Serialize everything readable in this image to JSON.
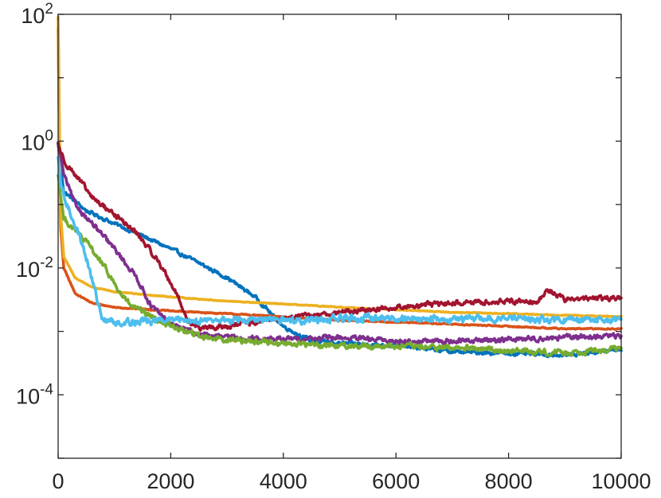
{
  "chart_data": {
    "type": "line",
    "title": "",
    "xlabel": "",
    "ylabel": "",
    "xlim": [
      0,
      10000
    ],
    "ylim": [
      1e-05,
      100
    ],
    "yscale": "log",
    "grid": false,
    "legend": "none",
    "x_ticks": [
      {
        "value": 0,
        "label": "0"
      },
      {
        "value": 2000,
        "label": "2000"
      },
      {
        "value": 4000,
        "label": "4000"
      },
      {
        "value": 6000,
        "label": "6000"
      },
      {
        "value": 8000,
        "label": "8000"
      },
      {
        "value": 10000,
        "label": "10000"
      }
    ],
    "y_ticks": [
      {
        "value": 0.0001,
        "base": "10",
        "exp": "-4"
      },
      {
        "value": 0.01,
        "base": "10",
        "exp": "-2"
      },
      {
        "value": 1,
        "base": "10",
        "exp": "0"
      },
      {
        "value": 100,
        "base": "10",
        "exp": "2"
      }
    ],
    "series": [
      {
        "color": "#0072BD",
        "noise": 0.05,
        "points": [
          [
            0,
            0.9
          ],
          [
            100,
            0.16
          ],
          [
            500,
            0.08
          ],
          [
            1000,
            0.05
          ],
          [
            1500,
            0.032
          ],
          [
            2000,
            0.02
          ],
          [
            2500,
            0.012
          ],
          [
            3000,
            0.007
          ],
          [
            3500,
            0.0035
          ],
          [
            4000,
            0.0012
          ],
          [
            4500,
            0.0007
          ],
          [
            5000,
            0.00065
          ],
          [
            6000,
            0.0006
          ],
          [
            7000,
            0.00048
          ],
          [
            8000,
            0.00045
          ],
          [
            9000,
            0.00042
          ],
          [
            10000,
            0.00052
          ]
        ]
      },
      {
        "color": "#D95319",
        "noise": 0.015,
        "points": [
          [
            0,
            60
          ],
          [
            40,
            0.05
          ],
          [
            100,
            0.01
          ],
          [
            300,
            0.004
          ],
          [
            600,
            0.0028
          ],
          [
            1000,
            0.0024
          ],
          [
            2000,
            0.0021
          ],
          [
            3000,
            0.0019
          ],
          [
            4000,
            0.0017
          ],
          [
            5000,
            0.0015
          ],
          [
            6000,
            0.0014
          ],
          [
            7000,
            0.0013
          ],
          [
            8000,
            0.0012
          ],
          [
            9000,
            0.0011
          ],
          [
            10000,
            0.0011
          ]
        ]
      },
      {
        "color": "#EDB120",
        "noise": 0.01,
        "points": [
          [
            0,
            90
          ],
          [
            40,
            0.08
          ],
          [
            100,
            0.015
          ],
          [
            300,
            0.007
          ],
          [
            600,
            0.005
          ],
          [
            1000,
            0.0042
          ],
          [
            2000,
            0.0035
          ],
          [
            3000,
            0.003
          ],
          [
            4000,
            0.0027
          ],
          [
            5000,
            0.0024
          ],
          [
            6000,
            0.0022
          ],
          [
            7000,
            0.002
          ],
          [
            8000,
            0.0019
          ],
          [
            9000,
            0.0018
          ],
          [
            10000,
            0.0017
          ]
        ]
      },
      {
        "color": "#7E2F8E",
        "noise": 0.07,
        "points": [
          [
            0,
            0.9
          ],
          [
            100,
            0.3
          ],
          [
            300,
            0.1
          ],
          [
            700,
            0.04
          ],
          [
            1000,
            0.02
          ],
          [
            1400,
            0.007
          ],
          [
            1650,
            0.0025
          ],
          [
            2000,
            0.0013
          ],
          [
            2500,
            0.0009
          ],
          [
            3000,
            0.0008
          ],
          [
            4000,
            0.00075
          ],
          [
            5000,
            0.0008
          ],
          [
            6000,
            0.0007
          ],
          [
            7000,
            0.0007
          ],
          [
            8000,
            0.00075
          ],
          [
            9000,
            0.0008
          ],
          [
            10000,
            0.00085
          ]
        ]
      },
      {
        "color": "#77AC30",
        "noise": 0.08,
        "points": [
          [
            0,
            0.3
          ],
          [
            100,
            0.06
          ],
          [
            300,
            0.04
          ],
          [
            600,
            0.02
          ],
          [
            900,
            0.008
          ],
          [
            1100,
            0.004
          ],
          [
            1300,
            0.0025
          ],
          [
            1600,
            0.0018
          ],
          [
            2000,
            0.0012
          ],
          [
            2500,
            0.00085
          ],
          [
            3000,
            0.00075
          ],
          [
            4000,
            0.00065
          ],
          [
            5000,
            0.0006
          ],
          [
            6000,
            0.00058
          ],
          [
            7000,
            0.00055
          ],
          [
            8000,
            0.0005
          ],
          [
            9000,
            0.00046
          ],
          [
            10000,
            0.00054
          ]
        ]
      },
      {
        "color": "#A2142F",
        "noise": 0.07,
        "points": [
          [
            0,
            0.9
          ],
          [
            100,
            0.5
          ],
          [
            300,
            0.3
          ],
          [
            600,
            0.13
          ],
          [
            1000,
            0.07
          ],
          [
            1400,
            0.035
          ],
          [
            1800,
            0.012
          ],
          [
            2100,
            0.004
          ],
          [
            2300,
            0.0015
          ],
          [
            2500,
            0.0011
          ],
          [
            3000,
            0.0012
          ],
          [
            3500,
            0.0014
          ],
          [
            4000,
            0.0016
          ],
          [
            5000,
            0.002
          ],
          [
            6000,
            0.0024
          ],
          [
            7000,
            0.0028
          ],
          [
            8000,
            0.003
          ],
          [
            8500,
            0.003
          ],
          [
            8700,
            0.0045
          ],
          [
            9000,
            0.0032
          ],
          [
            10000,
            0.0034
          ]
        ]
      },
      {
        "color": "#4DBEEE",
        "noise": 0.1,
        "points": [
          [
            0,
            0.5
          ],
          [
            50,
            0.2
          ],
          [
            150,
            0.1
          ],
          [
            300,
            0.05
          ],
          [
            500,
            0.015
          ],
          [
            700,
            0.003
          ],
          [
            800,
            0.0015
          ],
          [
            1000,
            0.0014
          ],
          [
            2000,
            0.0015
          ],
          [
            3000,
            0.0015
          ],
          [
            4000,
            0.0015
          ],
          [
            5000,
            0.0016
          ],
          [
            6000,
            0.0016
          ],
          [
            7000,
            0.0016
          ],
          [
            8000,
            0.0016
          ],
          [
            9000,
            0.0015
          ],
          [
            10000,
            0.0015
          ]
        ]
      }
    ]
  }
}
